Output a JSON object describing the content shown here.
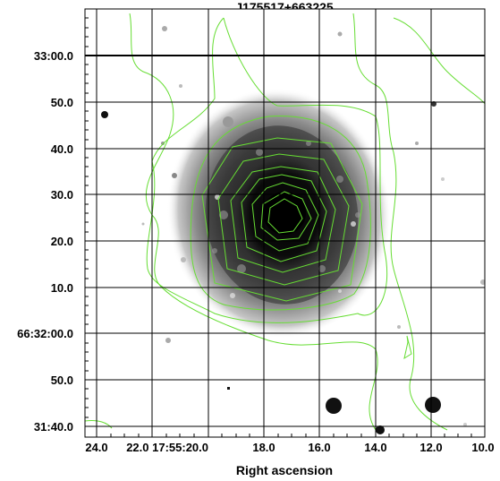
{
  "title": "J175517+663225",
  "xlabel": "Right ascension",
  "x_ticks": [
    "24.0",
    "22.0 17:55:20.0",
    "18.0",
    "16.0",
    "14.0",
    "12.0",
    "10.0"
  ],
  "y_ticks": [
    "33:00.0",
    "50.0",
    "40.0",
    "30.0",
    "20.0",
    "10.0",
    "66:32:00.0",
    "50.0",
    "31:40.0"
  ],
  "colors": {
    "contour": "#66dd33",
    "grid": "#000000",
    "background": "#ffffff"
  }
}
